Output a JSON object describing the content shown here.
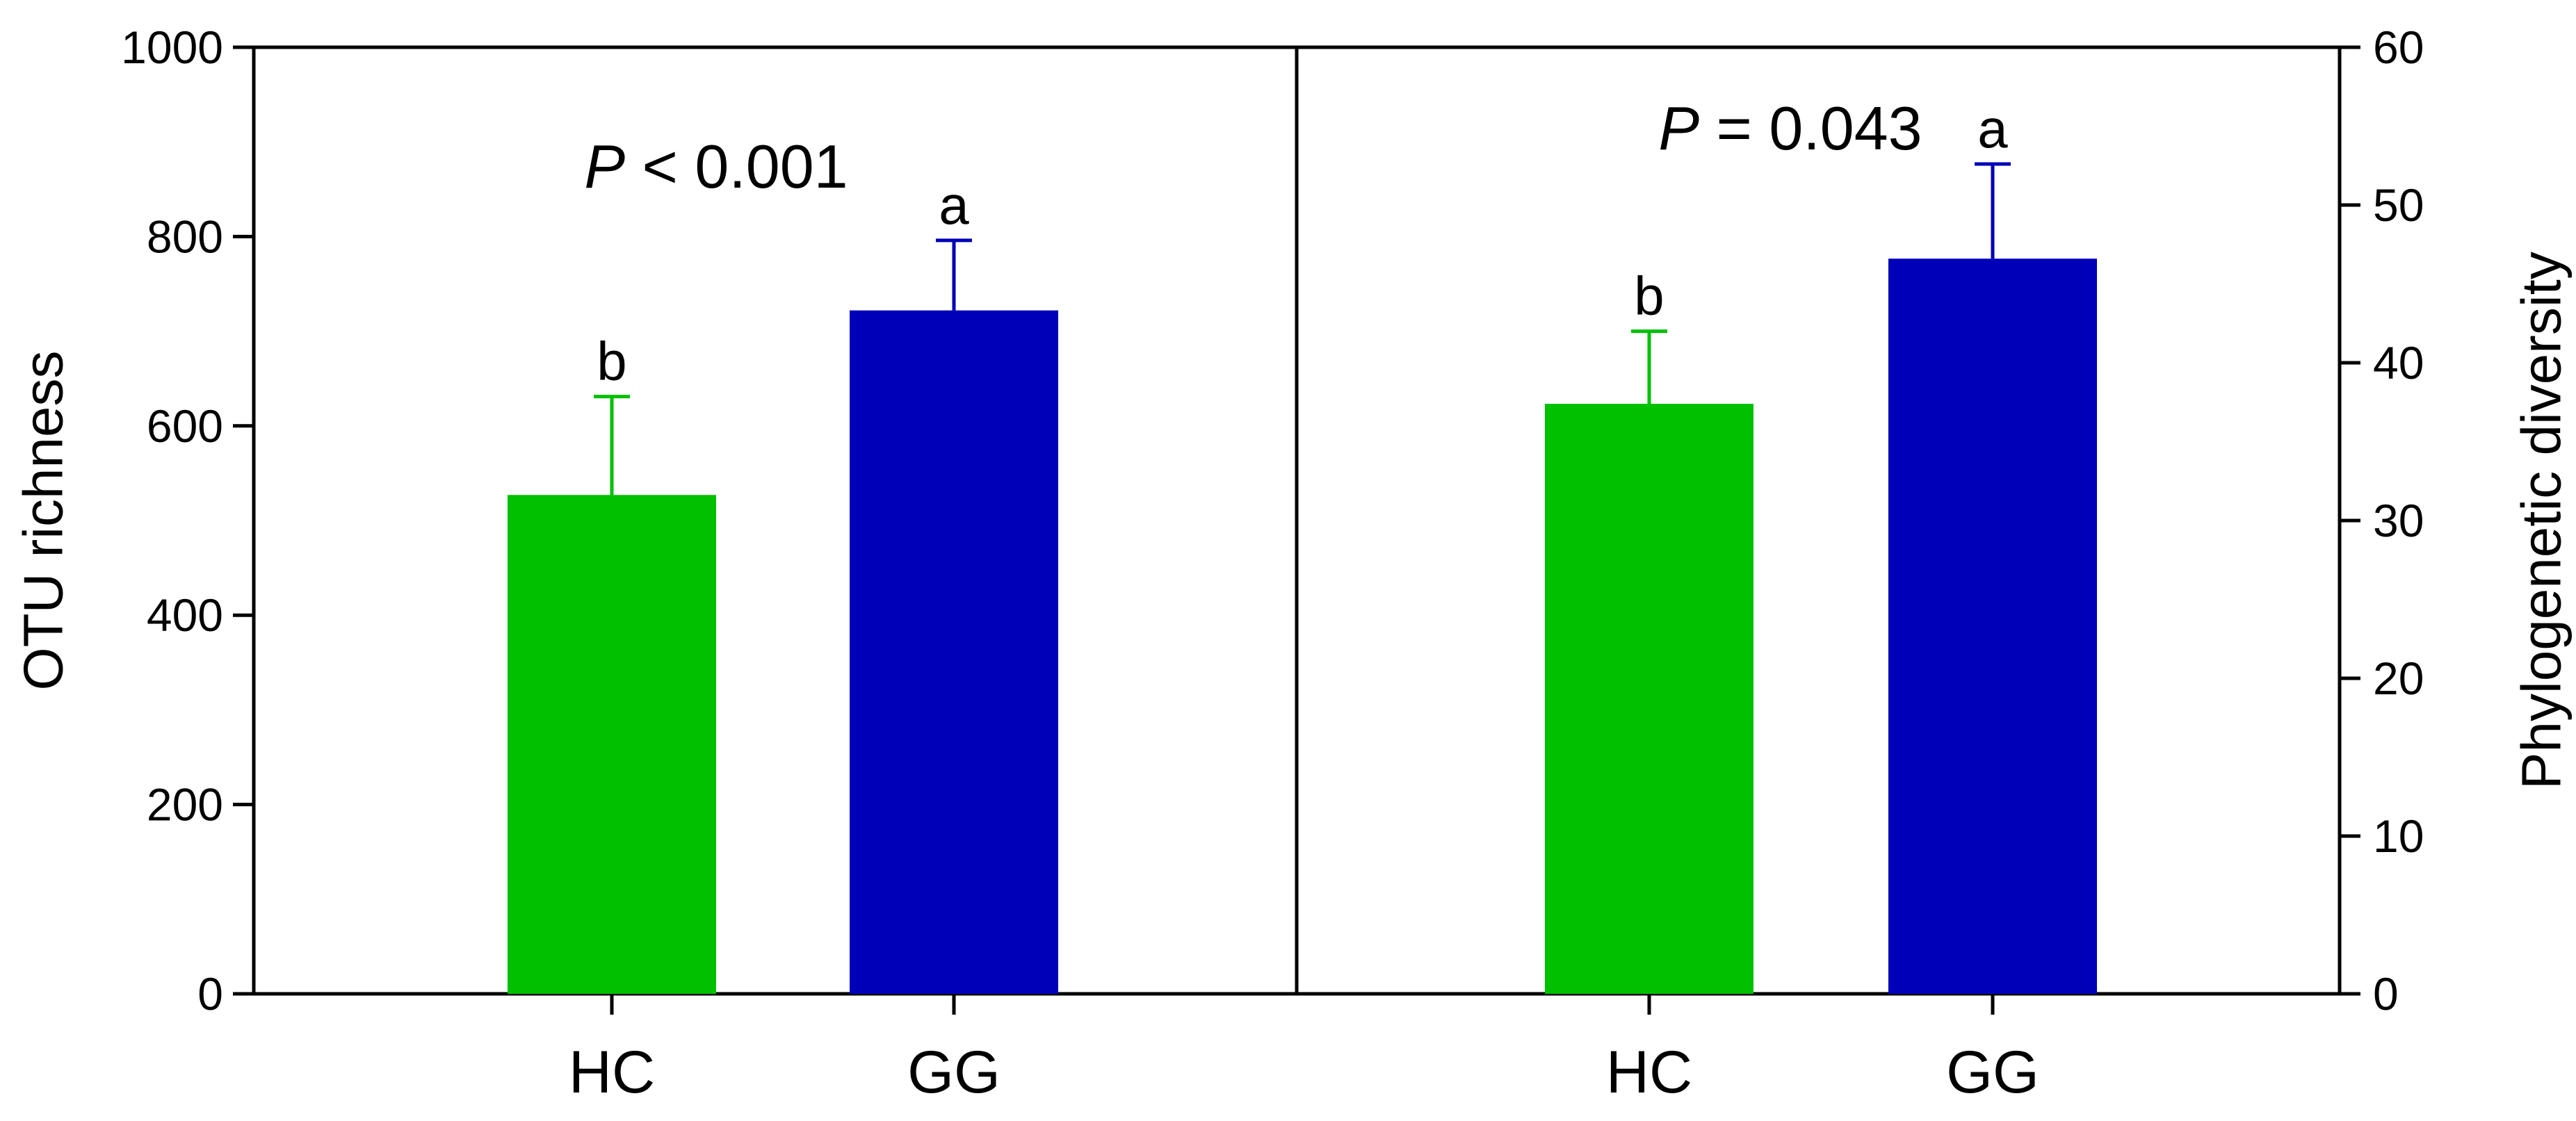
{
  "chart_data": [
    {
      "type": "bar",
      "panel": "left",
      "categories": [
        "HC",
        "GG"
      ],
      "values": [
        527,
        722
      ],
      "error_upper": [
        631,
        796
      ],
      "significance_letters": [
        "b",
        "a"
      ],
      "colors": [
        "#00c000",
        "#0000b8"
      ],
      "annotation": {
        "italic": "P",
        "text": " < 0.001"
      },
      "xlabel": "",
      "ylabel": "OTU richness",
      "y_axis_side": "left",
      "ylim": [
        0,
        1000
      ],
      "yticks": [
        0,
        200,
        400,
        600,
        800,
        1000
      ],
      "grid": false,
      "legend": "none"
    },
    {
      "type": "bar",
      "panel": "right",
      "categories": [
        "HC",
        "GG"
      ],
      "values": [
        37.4,
        46.6
      ],
      "error_upper": [
        42.0,
        52.6
      ],
      "significance_letters": [
        "b",
        "a"
      ],
      "colors": [
        "#00c000",
        "#0000b8"
      ],
      "annotation": {
        "italic": "P",
        "text": " = 0.043"
      },
      "xlabel": "",
      "ylabel": "Phylogenetic diversity",
      "y_axis_side": "right",
      "ylim": [
        0,
        60
      ],
      "yticks": [
        0,
        10,
        20,
        30,
        40,
        50,
        60
      ],
      "grid": false,
      "legend": "none"
    }
  ]
}
